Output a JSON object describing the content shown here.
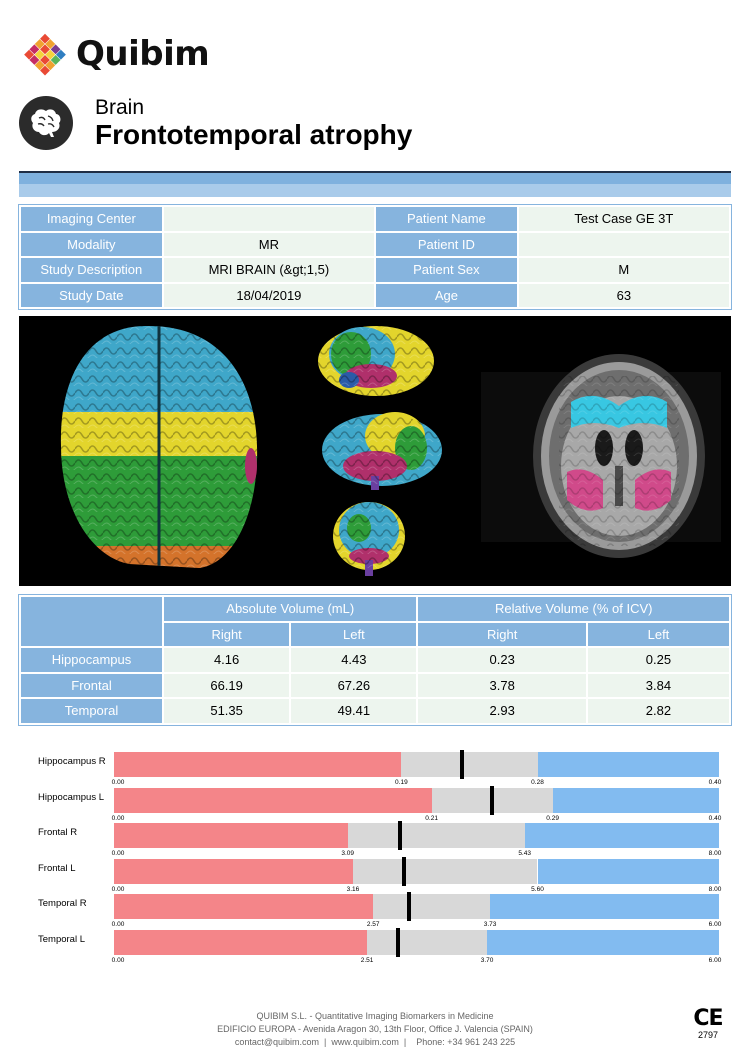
{
  "brand": {
    "name": "Quibim"
  },
  "header": {
    "category": "Brain",
    "title": "Frontotemporal atrophy"
  },
  "patient_info": [
    {
      "label_left": "Imaging Center",
      "value_left": "",
      "label_right": "Patient Name",
      "value_right": "Test Case GE 3T"
    },
    {
      "label_left": "Modality",
      "value_left": "MR",
      "label_right": "Patient ID",
      "value_right": ""
    },
    {
      "label_left": "Study Description",
      "value_left": "MRI BRAIN (&gt;1,5)",
      "label_right": "Patient Sex",
      "value_right": "M"
    },
    {
      "label_left": "Study Date",
      "value_left": "18/04/2019",
      "label_right": "Age",
      "value_right": "63"
    }
  ],
  "volume_table": {
    "group_headers": [
      "Absolute Volume (mL)",
      "Relative Volume (% of ICV)"
    ],
    "sub_headers": [
      "Right",
      "Left",
      "Right",
      "Left"
    ],
    "rows": [
      {
        "region": "Hippocampus",
        "values": [
          "4.16",
          "4.43",
          "0.23",
          "0.25"
        ]
      },
      {
        "region": "Frontal",
        "values": [
          "66.19",
          "67.26",
          "3.78",
          "3.84"
        ]
      },
      {
        "region": "Temporal",
        "values": [
          "51.35",
          "49.41",
          "2.93",
          "2.82"
        ]
      }
    ]
  },
  "bars": [
    {
      "label": "Hippocampus R",
      "min": 0,
      "max": 0.4,
      "low": 0.19,
      "high": 0.28,
      "value": 0.23,
      "ticks": [
        "0.00",
        "0.19",
        "0.28",
        "0.40"
      ]
    },
    {
      "label": "Hippocampus L",
      "min": 0,
      "max": 0.4,
      "low": 0.21,
      "high": 0.29,
      "value": 0.25,
      "ticks": [
        "0.00",
        "0.21",
        "0.29",
        "0.40"
      ]
    },
    {
      "label": "Frontal R",
      "min": 0,
      "max": 8.0,
      "low": 3.09,
      "high": 5.43,
      "value": 3.78,
      "ticks": [
        "0.00",
        "3.09",
        "5.43",
        "8.00"
      ]
    },
    {
      "label": "Frontal L",
      "min": 0,
      "max": 8.0,
      "low": 3.16,
      "high": 5.6,
      "value": 3.84,
      "ticks": [
        "0.00",
        "3.16",
        "5.60",
        "8.00"
      ]
    },
    {
      "label": "Temporal R",
      "min": 0,
      "max": 6.0,
      "low": 2.57,
      "high": 3.73,
      "value": 2.93,
      "ticks": [
        "0.00",
        "2.57",
        "3.73",
        "6.00"
      ]
    },
    {
      "label": "Temporal L",
      "min": 0,
      "max": 6.0,
      "low": 2.51,
      "high": 3.7,
      "value": 2.82,
      "ticks": [
        "0.00",
        "2.51",
        "3.70",
        "6.00"
      ]
    }
  ],
  "colors": {
    "below_range": "#f48589",
    "normal_range": "#d8d8d8",
    "above_range": "#82bbf0",
    "table_header": "#86b4de",
    "table_cell": "#edf5ee"
  },
  "footer": {
    "line1": "QUIBIM S.L. - Quantitative Imaging Biomarkers in Medicine",
    "line2": "EDIFICIO EUROPA - Avenida Aragon 30, 13th Floor, Office J. Valencia (SPAIN)",
    "line3": "contact@quibim.com  |  www.quibim.com  |    Phone: +34 961 243 225"
  },
  "certification": {
    "mark": "CE",
    "number": "2797"
  }
}
